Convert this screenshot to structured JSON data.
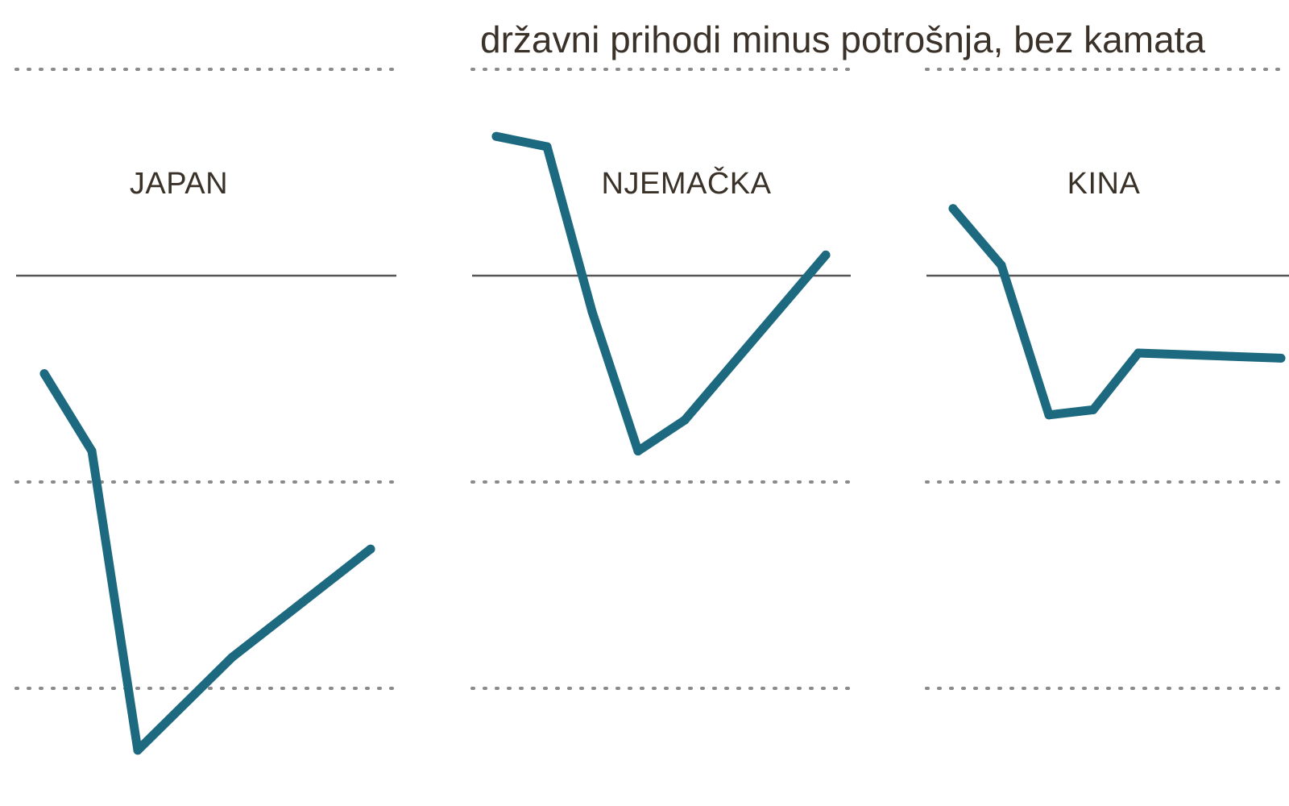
{
  "chart_data": {
    "type": "line",
    "subtitle": "državni prihodi minus potrošnja, bez kamata",
    "y_grid": [
      4,
      0,
      -4,
      -8
    ],
    "zero_line": 0,
    "grid": "dotted",
    "line_color": "#1d6a80",
    "axis_color": "#555555",
    "grid_color": "#8a8a8a",
    "panels": [
      {
        "title": "JAPAN",
        "values": [
          -1.9,
          -3.4,
          -9.2,
          -7.4,
          -5.3
        ]
      },
      {
        "title": "NJEMAČKA",
        "values": [
          2.7,
          2.5,
          -0.7,
          -3.4,
          -2.8,
          0.4
        ]
      },
      {
        "title": "KINA",
        "values": [
          1.3,
          0.2,
          -2.7,
          -2.6,
          -1.5,
          -1.6
        ]
      }
    ]
  }
}
